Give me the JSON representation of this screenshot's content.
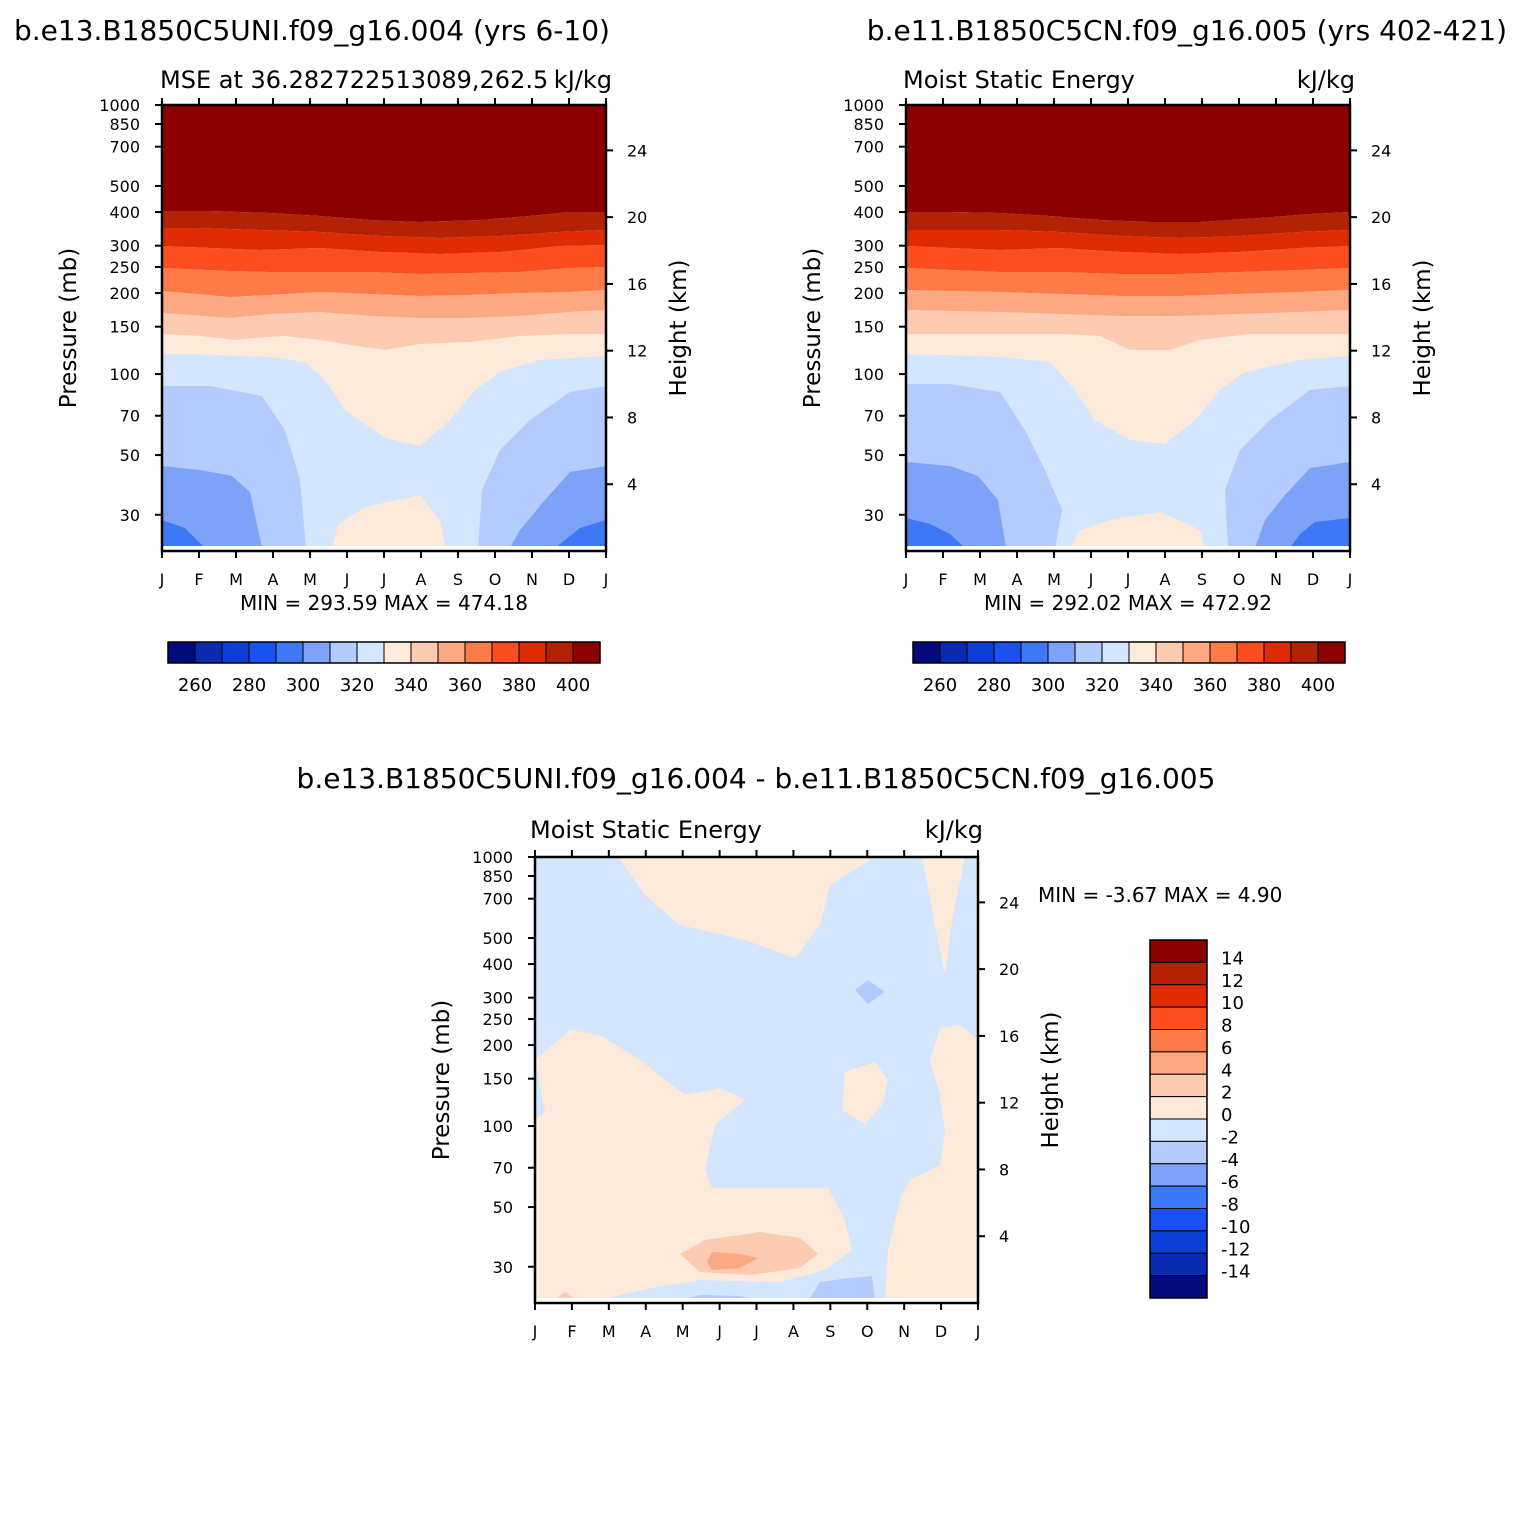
{
  "chart_data": [
    {
      "type": "contour",
      "title": "b.e13.B1850C5UNI.f09_g16.004 (yrs 6-10)",
      "left_label": "MSE at 36.282722513089,262.5",
      "right_label": "kJ/kg",
      "ylabel": "Pressure (mb)",
      "y2label": "Height (km)",
      "x_ticks": [
        "J",
        "F",
        "M",
        "A",
        "M",
        "J",
        "J",
        "A",
        "S",
        "O",
        "N",
        "D",
        "J"
      ],
      "y_ticks": [
        "30",
        "50",
        "70",
        "100",
        "150",
        "200",
        "250",
        "300",
        "400",
        "500",
        "700",
        "850",
        "1000"
      ],
      "y2_ticks": [
        "24",
        "20",
        "16",
        "12",
        "8",
        "4"
      ],
      "min_max": "MIN =  293.59  MAX =  474.18",
      "min": 293.59,
      "max": 474.18,
      "colorbar_labels": [
        "260",
        "280",
        "300",
        "320",
        "340",
        "360",
        "380",
        "400"
      ],
      "colorbar_colors": [
        "#050a7a",
        "#0a2bb0",
        "#0e3ed9",
        "#1a52f2",
        "#3e78f7",
        "#7ea2f8",
        "#b4cbfd",
        "#d4e6fd",
        "#feeadb",
        "#fdcab2",
        "#fca883",
        "#fd7b46",
        "#fb4d1d",
        "#df2b02",
        "#b32205",
        "#8b0000"
      ]
    },
    {
      "type": "contour",
      "title": "b.e11.B1850C5CN.f09_g16.005 (yrs 402-421)",
      "left_label": "Moist Static Energy",
      "right_label": "kJ/kg",
      "ylabel": "Pressure (mb)",
      "y2label": "Height (km)",
      "x_ticks": [
        "J",
        "F",
        "M",
        "A",
        "M",
        "J",
        "J",
        "A",
        "S",
        "O",
        "N",
        "D",
        "J"
      ],
      "y_ticks": [
        "30",
        "50",
        "70",
        "100",
        "150",
        "200",
        "250",
        "300",
        "400",
        "500",
        "700",
        "850",
        "1000"
      ],
      "y2_ticks": [
        "24",
        "20",
        "16",
        "12",
        "8",
        "4"
      ],
      "min_max": "MIN =  292.02  MAX =  472.92",
      "min": 292.02,
      "max": 472.92,
      "colorbar_labels": [
        "260",
        "280",
        "300",
        "320",
        "340",
        "360",
        "380",
        "400"
      ],
      "colorbar_colors": [
        "#050a7a",
        "#0a2bb0",
        "#0e3ed9",
        "#1a52f2",
        "#3e78f7",
        "#7ea2f8",
        "#b4cbfd",
        "#d4e6fd",
        "#feeadb",
        "#fdcab2",
        "#fca883",
        "#fd7b46",
        "#fb4d1d",
        "#df2b02",
        "#b32205",
        "#8b0000"
      ]
    },
    {
      "type": "contour",
      "title": "b.e13.B1850C5UNI.f09_g16.004 - b.e11.B1850C5CN.f09_g16.005",
      "left_label": "Moist Static Energy",
      "right_label": "kJ/kg",
      "ylabel": "Pressure (mb)",
      "y2label": "Height (km)",
      "x_ticks": [
        "J",
        "F",
        "M",
        "A",
        "M",
        "J",
        "J",
        "A",
        "S",
        "O",
        "N",
        "D",
        "J"
      ],
      "y_ticks": [
        "30",
        "50",
        "70",
        "100",
        "150",
        "200",
        "250",
        "300",
        "400",
        "500",
        "700",
        "850",
        "1000"
      ],
      "y2_ticks": [
        "24",
        "20",
        "16",
        "12",
        "8",
        "4"
      ],
      "min_max": "MIN =   -3.67  MAX =    4.90",
      "min": -3.67,
      "max": 4.9,
      "colorbar_labels": [
        "14",
        "12",
        "10",
        "8",
        "6",
        "4",
        "2",
        "0",
        "-2",
        "-4",
        "-6",
        "-8",
        "-10",
        "-12",
        "-14"
      ],
      "colorbar_colors": [
        "#8b0000",
        "#b32205",
        "#df2b02",
        "#fb4d1d",
        "#fd7b46",
        "#fca883",
        "#fdcab2",
        "#feeadb",
        "#d4e6fd",
        "#b4cbfd",
        "#7ea2f8",
        "#3e78f7",
        "#1a52f2",
        "#0e3ed9",
        "#0a2bb0",
        "#050a7a"
      ]
    }
  ]
}
